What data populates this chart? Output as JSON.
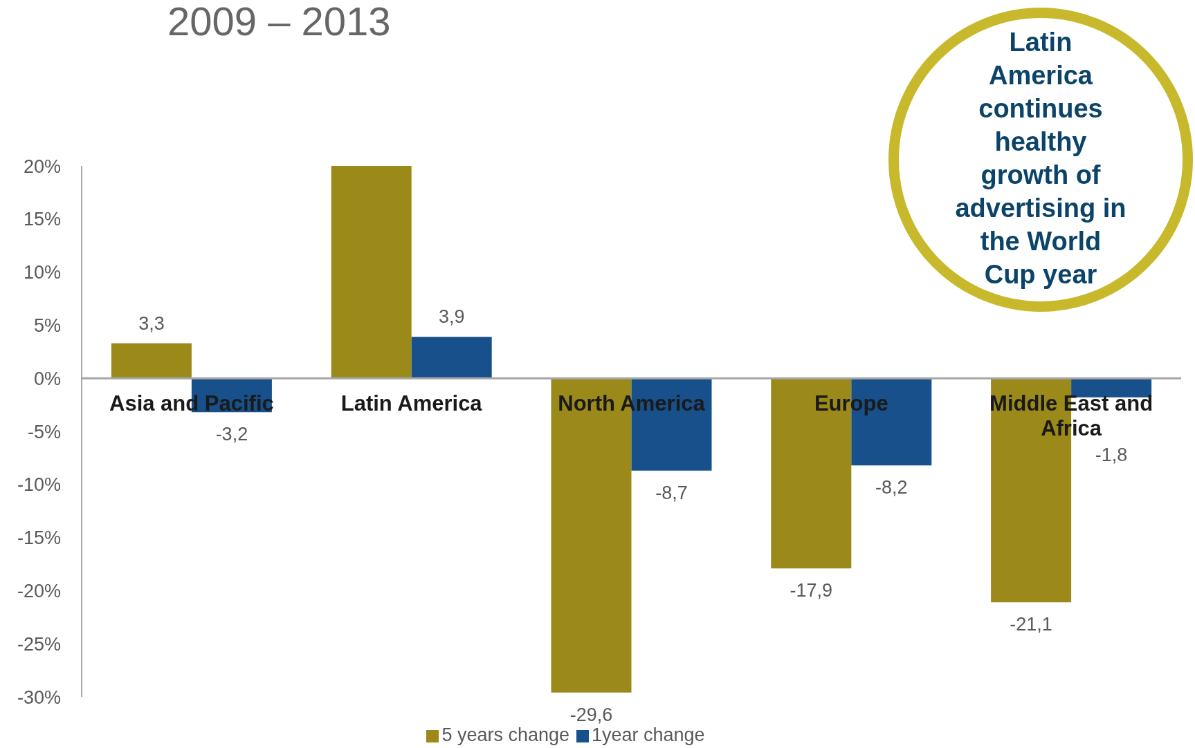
{
  "chart_data": {
    "type": "bar",
    "title": "2009 – 2013",
    "categories": [
      "Asia and Pacific",
      "Latin America",
      "North America",
      "Europe",
      "Middle East and Africa"
    ],
    "series": [
      {
        "name": "5 years change",
        "color": "#9b8a1a",
        "values": [
          3.3,
          20,
          -29.6,
          -17.9,
          -21.1
        ],
        "value_labels": [
          "3,3",
          null,
          "-29,6",
          "-17,9",
          "-21,1"
        ]
      },
      {
        "name": "1year change",
        "color": "#17508a",
        "values": [
          -3.2,
          3.9,
          -8.7,
          -8.2,
          -1.8
        ],
        "value_labels": [
          "-3,2",
          "3,9",
          "-8,7",
          "-8,2",
          "-1,8"
        ]
      }
    ],
    "ylim": [
      -30,
      20
    ],
    "yticks": [
      {
        "value": 20,
        "label": "20%"
      },
      {
        "value": 15,
        "label": "15%"
      },
      {
        "value": 10,
        "label": "10%"
      },
      {
        "value": 5,
        "label": "5%"
      },
      {
        "value": 0,
        "label": "0%"
      },
      {
        "value": -5,
        "label": "-5%"
      },
      {
        "value": -10,
        "label": "-10%"
      },
      {
        "value": -15,
        "label": "-15%"
      },
      {
        "value": -20,
        "label": "-20%"
      },
      {
        "value": -25,
        "label": "-25%"
      },
      {
        "value": -30,
        "label": "-30%"
      }
    ],
    "legend": "bottom",
    "annotations": [
      "Latin\nAmerica\ncontinues\nhealthy\ngrowth of\nadvertising in\nthe World\nCup year"
    ]
  }
}
